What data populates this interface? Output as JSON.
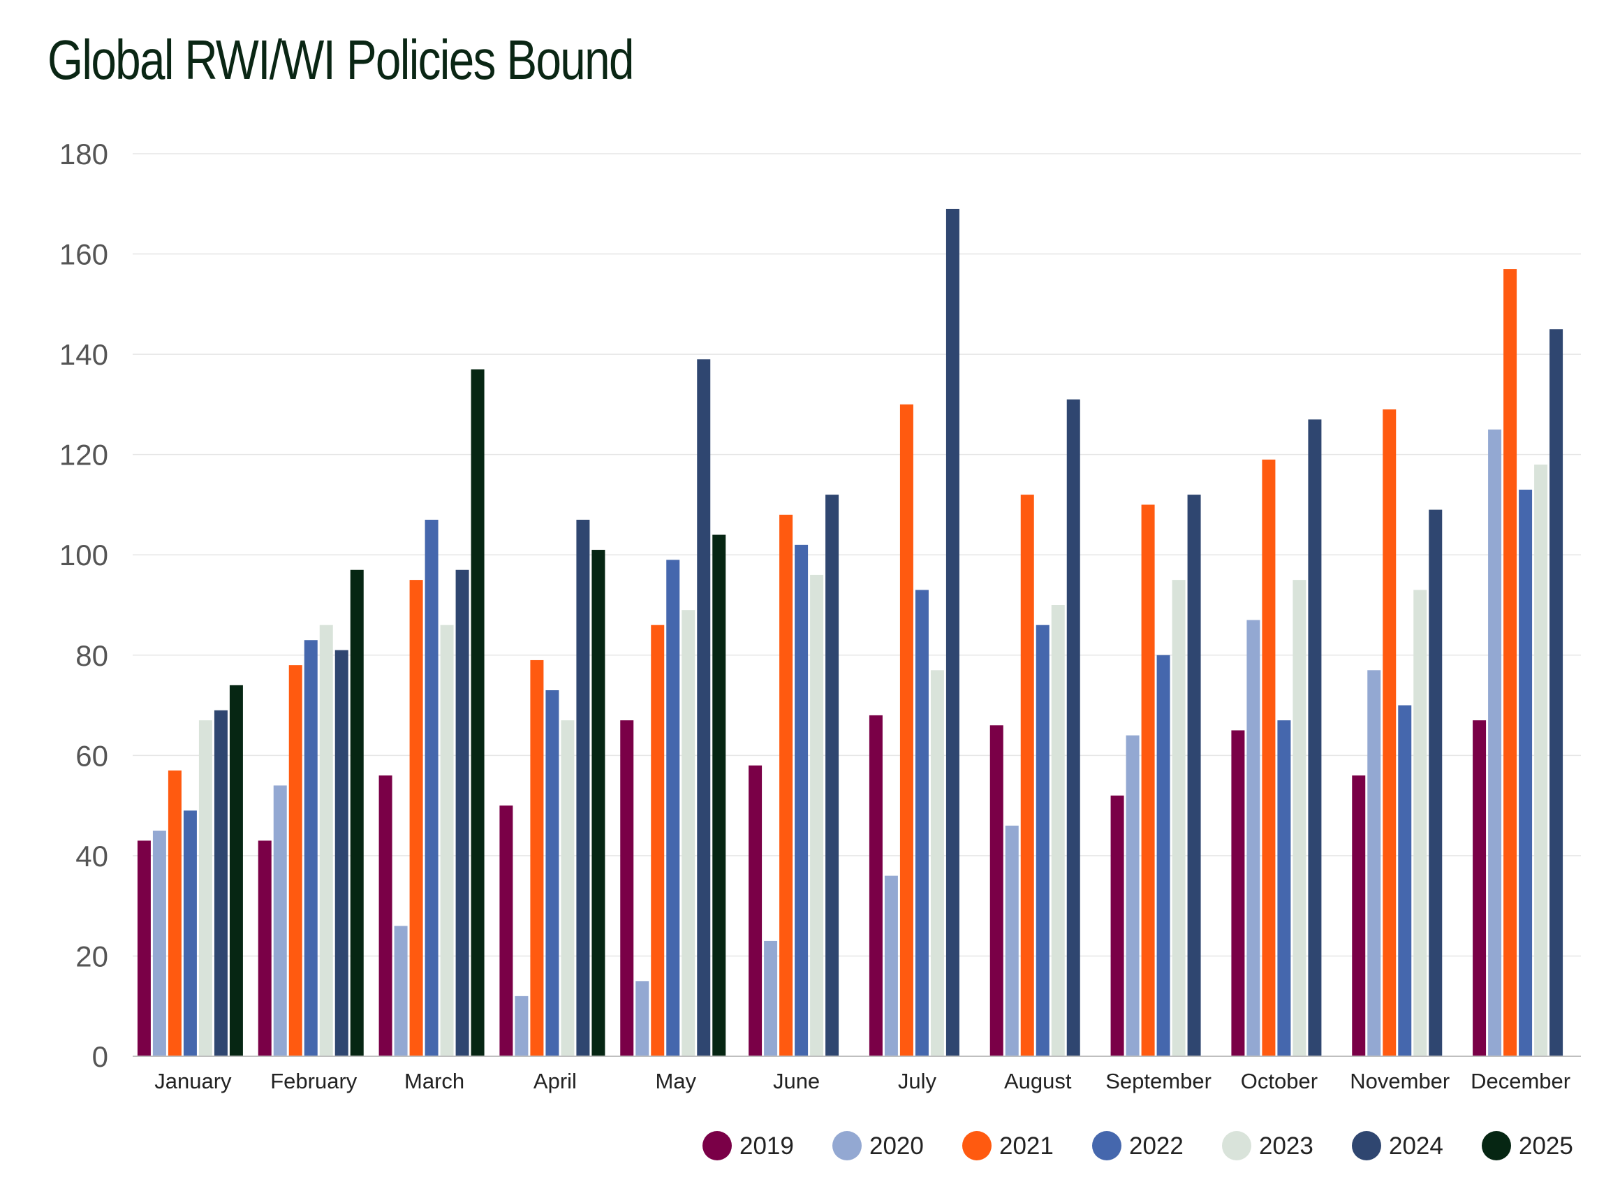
{
  "chart_data": {
    "type": "bar",
    "title": "Global RWI/WI Policies Bound",
    "xlabel": "",
    "ylabel": "",
    "ylim": [
      0,
      180
    ],
    "yticks": [
      0,
      20,
      40,
      60,
      80,
      100,
      120,
      140,
      160,
      180
    ],
    "grid": true,
    "legend_position": "bottom-right",
    "categories": [
      "January",
      "February",
      "March",
      "April",
      "May",
      "June",
      "July",
      "August",
      "September",
      "October",
      "November",
      "December"
    ],
    "series": [
      {
        "name": "2019",
        "color": "#7a0047",
        "values": [
          43,
          43,
          56,
          50,
          67,
          58,
          68,
          66,
          52,
          65,
          56,
          67
        ]
      },
      {
        "name": "2020",
        "color": "#93a8d2",
        "values": [
          45,
          54,
          26,
          12,
          15,
          23,
          36,
          46,
          64,
          87,
          77,
          125
        ]
      },
      {
        "name": "2021",
        "color": "#ff5a10",
        "values": [
          57,
          78,
          95,
          79,
          86,
          108,
          130,
          112,
          110,
          119,
          129,
          157
        ]
      },
      {
        "name": "2022",
        "color": "#4567ad",
        "values": [
          49,
          83,
          107,
          73,
          99,
          102,
          93,
          86,
          80,
          67,
          70,
          113
        ]
      },
      {
        "name": "2023",
        "color": "#d9e3da",
        "values": [
          67,
          86,
          86,
          67,
          89,
          96,
          77,
          90,
          95,
          95,
          93,
          118
        ]
      },
      {
        "name": "2024",
        "color": "#2f4670",
        "values": [
          69,
          81,
          97,
          107,
          139,
          112,
          169,
          131,
          112,
          127,
          109,
          145
        ]
      },
      {
        "name": "2025",
        "color": "#062613",
        "values": [
          74,
          97,
          137,
          101,
          104,
          null,
          null,
          null,
          null,
          null,
          null,
          null
        ]
      }
    ]
  }
}
